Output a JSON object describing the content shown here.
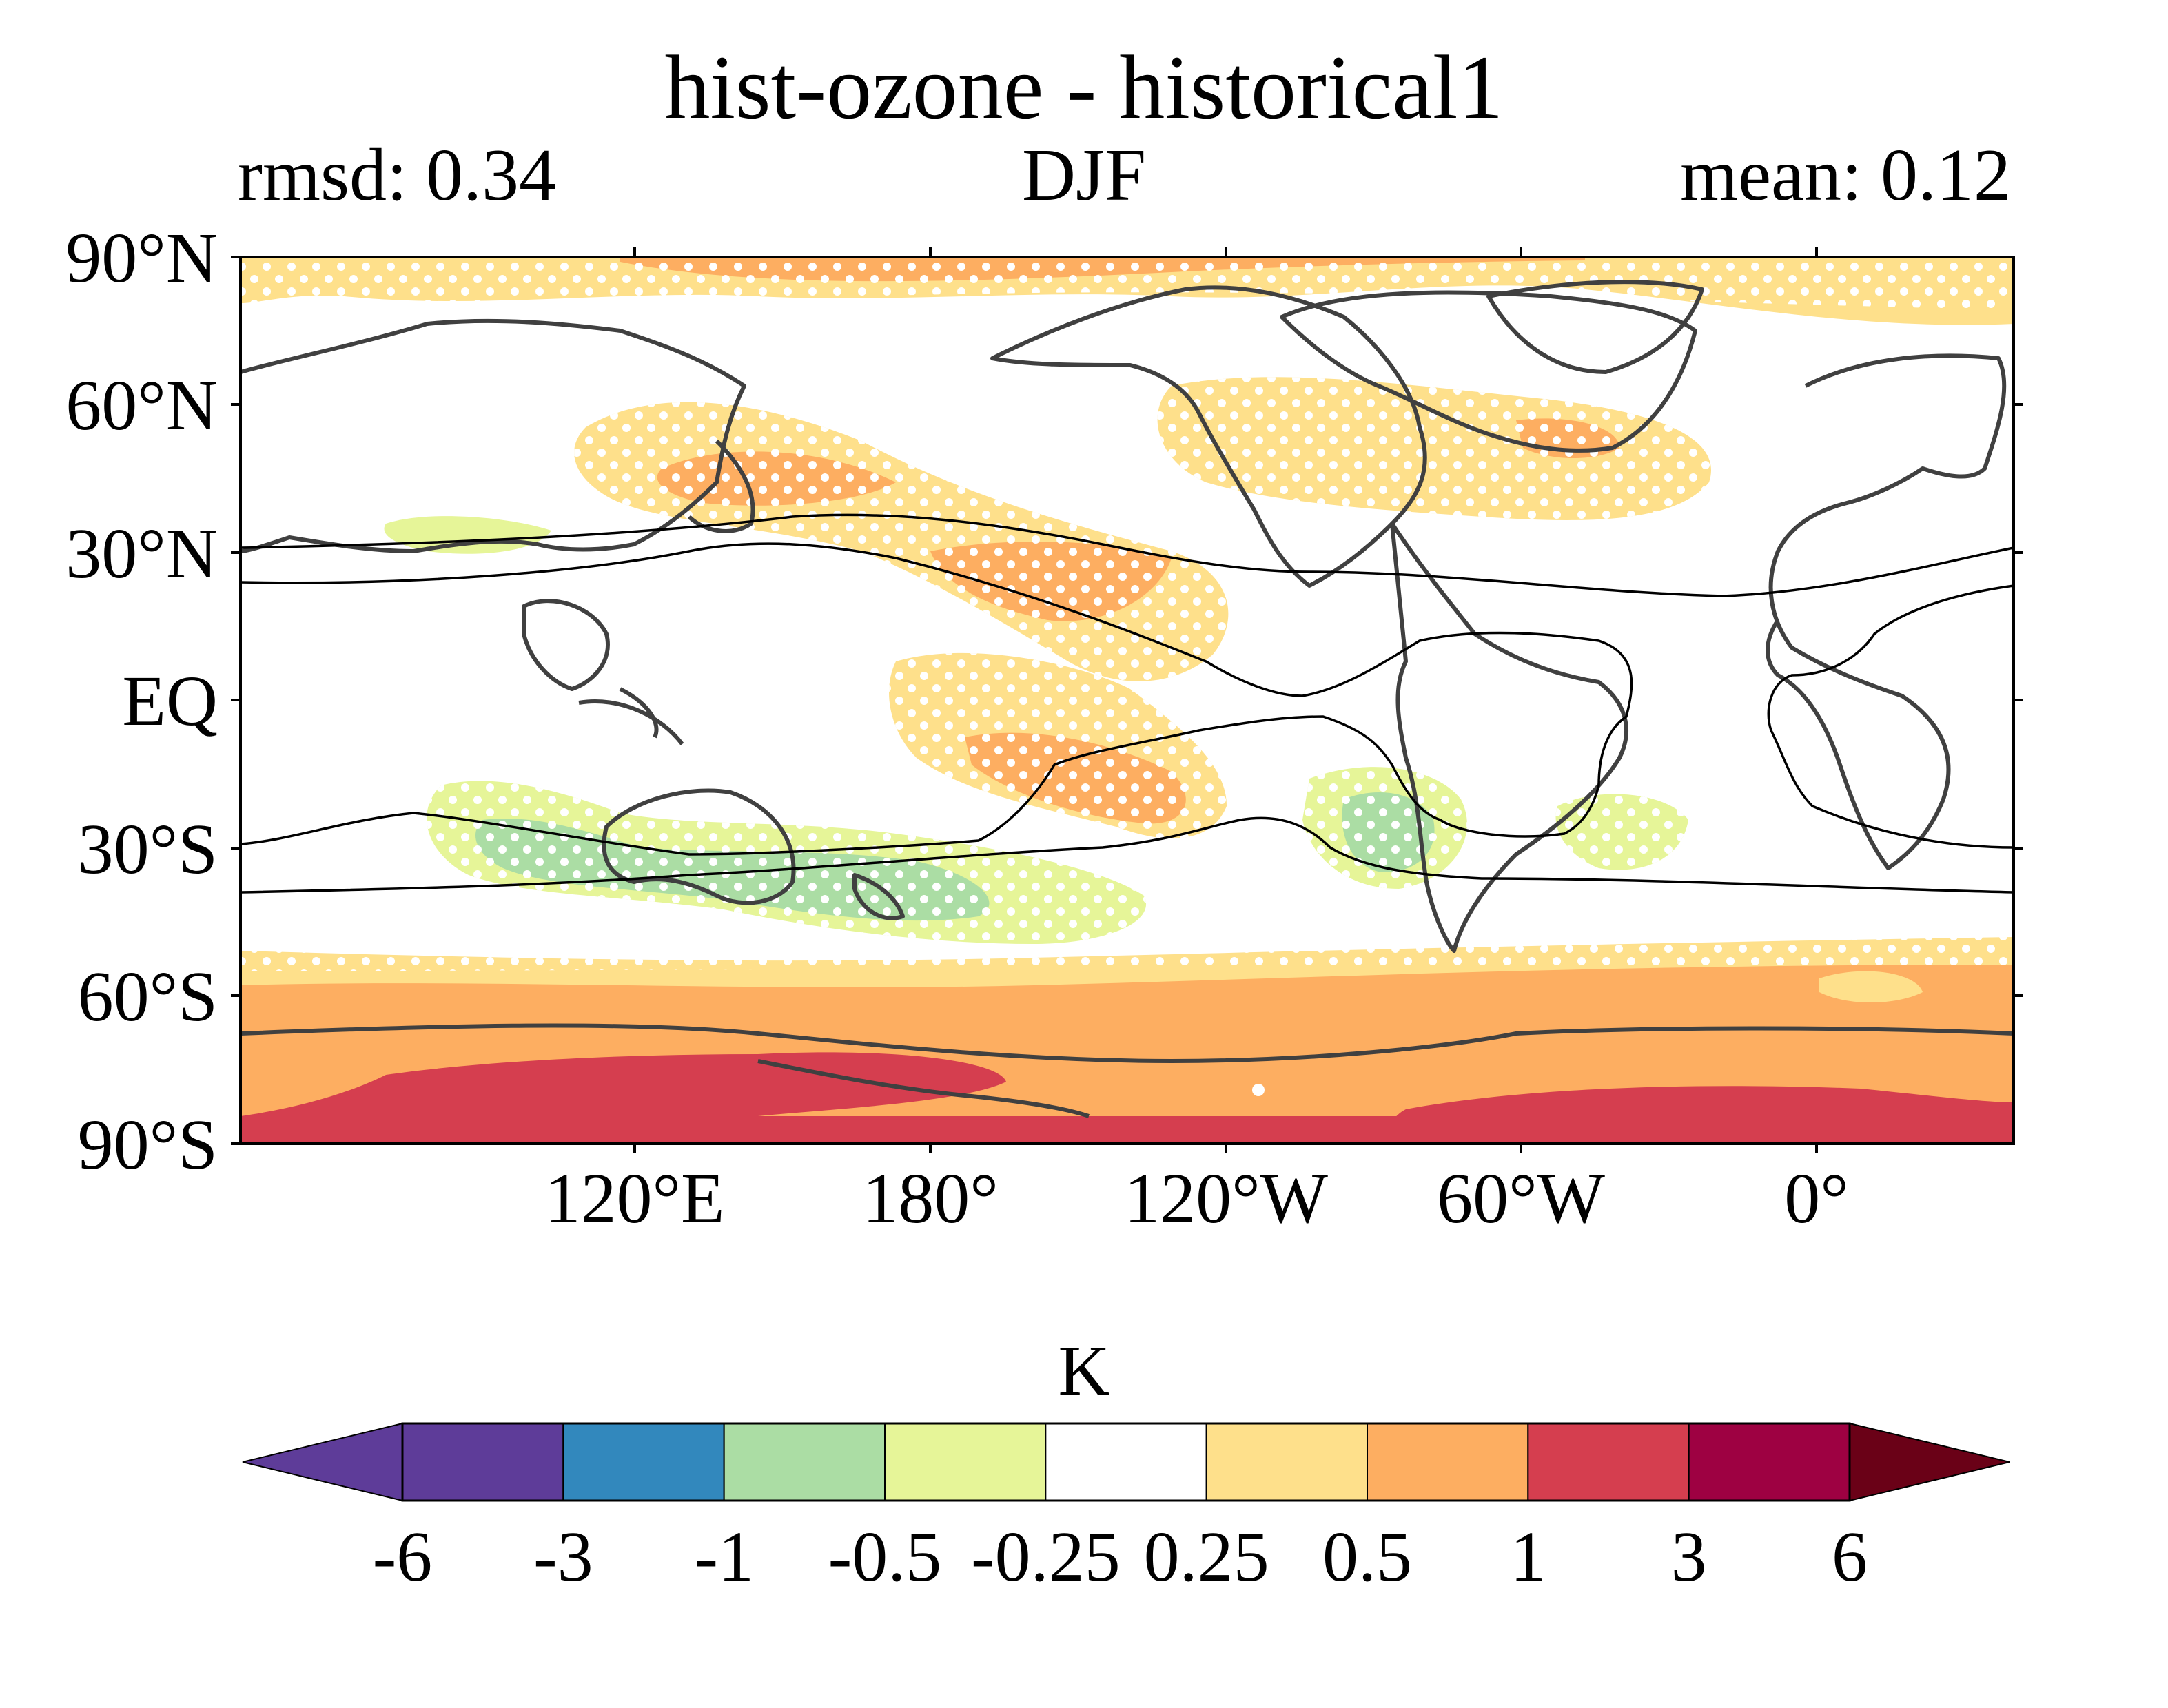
{
  "title": "hist-ozone - historical1",
  "subtitle_left": "rmsd: 0.34",
  "subtitle_center": "DJF",
  "subtitle_right": "mean: 0.12",
  "latitude_labels": [
    "90°N",
    "60°N",
    "30°N",
    "EQ",
    "30°S",
    "60°S",
    "90°S"
  ],
  "longitude_labels": [
    "120°E",
    "180°",
    "120°W",
    "60°W",
    "0°"
  ],
  "colorbar": {
    "title": "K",
    "tick_labels": [
      "-6",
      "-3",
      "-1",
      "-0.5",
      "-0.25",
      "0.25",
      "0.5",
      "1",
      "3",
      "6"
    ],
    "colors": [
      "#5e3c99",
      "#3288bd",
      "#abdda4",
      "#e6f598",
      "#ffffff",
      "#fee08b",
      "#fdae61",
      "#d53e4f",
      "#9e0142"
    ],
    "extend_low_color": "#5e3c99",
    "extend_high_color": "#6a0117"
  },
  "chart_data": {
    "type": "heatmap",
    "title": "hist-ozone - historical1",
    "variable_units": "K",
    "season": "DJF",
    "rmsd": 0.34,
    "mean": 0.12,
    "projection": "PlateCarree",
    "lon_range": [
      40,
      400
    ],
    "lat_range": [
      -90,
      90
    ],
    "levels": [
      -6,
      -3,
      -1,
      -0.5,
      -0.25,
      0.25,
      0.5,
      1,
      3,
      6
    ],
    "level_colors": {
      "lt_-6": "#5e3c99",
      "-6_-3": "#5e3c99",
      "-3_-1": "#3288bd",
      "-1_-0.5": "#abdda4",
      "-0.5_-0.25": "#e6f598",
      "-0.25_0.25": "#ffffff",
      "0.25_0.5": "#fee08b",
      "0.5_1": "#fdae61",
      "1_3": "#d53e4f",
      "3_6": "#9e0142",
      "gt_6": "#6a0117"
    },
    "regions": [
      {
        "description": "Antarctic stratospheric-ozone warming band",
        "lat": [
          -90,
          -50
        ],
        "value_range": [
          0.5,
          3
        ]
      },
      {
        "description": "Southern Ocean cooling pattern near Australia",
        "lat": [
          -50,
          -20
        ],
        "value_range": [
          -1,
          -0.25
        ]
      },
      {
        "description": "North Pacific warming",
        "lat": [
          20,
          60
        ],
        "value_range": [
          0.25,
          1
        ]
      },
      {
        "description": "Arctic warming",
        "lat": [
          70,
          90
        ],
        "value_range": [
          0.25,
          1
        ]
      }
    ],
    "stippling": "significance hatching shown as white dots",
    "contour_lines": "climatological jet/subtropical boundary contours in black"
  }
}
